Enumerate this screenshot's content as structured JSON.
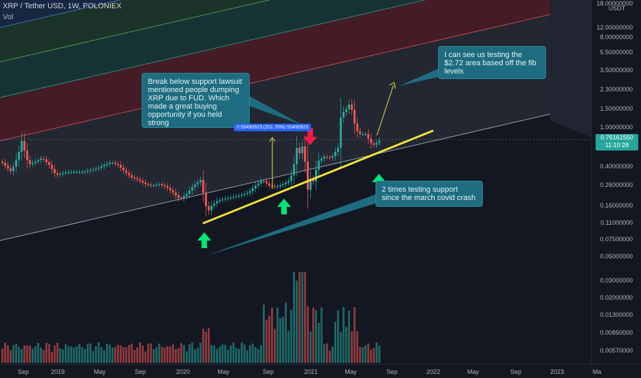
{
  "header": {
    "symbol_title": "XRP / Tether USD, 1W, POLONIEX",
    "volume_label": "Vol"
  },
  "price_axis": {
    "unit": "USDT",
    "labels": [
      "18.00000000",
      "12.00000000",
      "8.00000000",
      "5.50000000",
      "3.50000000",
      "2.30000000",
      "1.50000000",
      "1.00000000",
      "0.40000000",
      "0.26000000",
      "0.16000000",
      "0.11000000",
      "0.07500000",
      "0.05000000",
      "0.03000000",
      "0.02000000",
      "0.01300000",
      "0.00850000",
      "0.00570000"
    ],
    "current_price": "0.76161550",
    "countdown": "11:10:28"
  },
  "time_axis": {
    "labels": [
      "Sep",
      "2019",
      "May",
      "Sep",
      "2020",
      "May",
      "Sep",
      "2021",
      "May",
      "Sep",
      "2022",
      "May",
      "Sep",
      "2023",
      "Ma"
    ]
  },
  "annotations": {
    "lawsuit": "Break below support lawsuit mentioned people dumping XRP due to FUD. Which made a great buying opportunity if you held strong",
    "target": "I can see us testing the $2.72 area based off the fib levels",
    "support": "2 times testing support since the march covid crash",
    "measure": "0.55490923 (251.70%) 55490923"
  },
  "colors": {
    "background": "#131722",
    "candle_up": "#26a69a",
    "candle_down": "#ef5350",
    "trendline": "#f5e23b",
    "arrow_up": "#00e676",
    "arrow_down": "#ff1744",
    "callout": "#1e6c7f"
  },
  "icons": [
    "up-arrow-icon",
    "down-arrow-icon"
  ]
}
